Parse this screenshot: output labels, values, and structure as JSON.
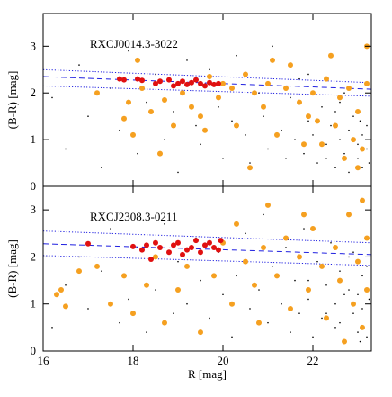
{
  "chart_data": [
    {
      "type": "scatter",
      "annotation": "RXCJ0014.3-3022",
      "ylabel": "(B-R) [mag]",
      "xlim": [
        16,
        23.3
      ],
      "ylim": [
        0,
        3.7
      ],
      "yticks": [
        0,
        1,
        2,
        3
      ],
      "series": [
        {
          "type": "scatter",
          "color": "#000000",
          "marker_size": 0.8,
          "x": [
            16.2,
            16.5,
            16.8,
            17.0,
            17.3,
            17.5,
            17.7,
            17.9,
            18.1,
            18.3,
            18.5,
            18.7,
            18.9,
            19.0,
            19.2,
            19.4,
            19.5,
            19.7,
            19.9,
            20.0,
            20.2,
            20.3,
            20.5,
            20.6,
            20.8,
            20.9,
            21.0,
            21.1,
            21.3,
            21.4,
            21.5,
            21.6,
            21.7,
            21.8,
            21.9,
            22.0,
            22.1,
            22.2,
            22.3,
            22.4,
            22.5,
            22.5,
            22.6,
            22.7,
            22.8,
            22.8,
            22.9,
            23.0,
            23.0,
            23.1,
            23.1,
            23.2,
            23.2,
            23.25,
            22.6,
            22.9,
            23.05,
            21.9,
            22.3,
            22.7
          ],
          "values": [
            1.9,
            0.8,
            2.6,
            1.5,
            0.4,
            2.1,
            1.2,
            2.9,
            0.7,
            1.8,
            2.4,
            1.0,
            1.6,
            0.3,
            2.7,
            1.3,
            0.9,
            2.5,
            1.7,
            0.6,
            1.4,
            2.8,
            1.1,
            0.5,
            2.0,
            1.5,
            0.8,
            3.0,
            1.2,
            0.6,
            1.9,
            1.0,
            2.3,
            0.7,
            1.4,
            1.1,
            0.5,
            1.7,
            0.9,
            1.3,
            0.4,
            1.6,
            1.0,
            0.7,
            1.2,
            0.3,
            1.5,
            0.9,
            0.6,
            1.1,
            0.4,
            1.3,
            0.8,
            0.5,
            1.8,
            1.0,
            1.4,
            2.4,
            0.6,
            2.0
          ]
        },
        {
          "type": "line",
          "color": "#2020e0",
          "style": "dashed",
          "x": [
            16,
            23.3
          ],
          "values": [
            2.35,
            2.08
          ]
        },
        {
          "type": "line",
          "color": "#2020e0",
          "style": "dotted",
          "x": [
            16,
            23.3
          ],
          "values": [
            2.5,
            2.22
          ]
        },
        {
          "type": "line",
          "color": "#2020e0",
          "style": "dotted",
          "x": [
            16,
            23.3
          ],
          "values": [
            2.15,
            1.93
          ]
        },
        {
          "type": "scatter",
          "color": "#f5a020",
          "marker_size": 3,
          "x": [
            17.2,
            17.8,
            17.9,
            18.0,
            18.2,
            18.4,
            18.7,
            18.9,
            19.1,
            19.3,
            19.5,
            19.7,
            19.9,
            20.0,
            20.2,
            20.3,
            20.5,
            20.7,
            20.9,
            21.0,
            21.2,
            21.4,
            21.5,
            21.7,
            21.9,
            22.0,
            22.2,
            22.3,
            22.5,
            22.6,
            22.7,
            22.8,
            22.9,
            23.0,
            23.1,
            23.2,
            23.2,
            23.0,
            22.4,
            21.1,
            18.6,
            18.1,
            20.6,
            21.8,
            22.1,
            19.6
          ],
          "values": [
            2.0,
            1.45,
            1.8,
            1.1,
            2.1,
            1.6,
            1.85,
            1.3,
            2.0,
            1.7,
            1.5,
            2.35,
            1.9,
            2.2,
            2.1,
            1.3,
            2.4,
            2.0,
            1.7,
            2.2,
            1.1,
            2.1,
            2.6,
            1.8,
            1.5,
            2.0,
            0.9,
            2.3,
            1.3,
            1.9,
            0.6,
            2.1,
            1.0,
            1.6,
            0.8,
            2.2,
            3.0,
            0.4,
            2.8,
            2.7,
            0.7,
            2.7,
            0.4,
            0.9,
            1.4,
            1.2
          ]
        },
        {
          "type": "scatter",
          "color": "#e01010",
          "marker_size": 3,
          "x": [
            17.7,
            17.8,
            18.1,
            18.2,
            18.5,
            18.6,
            18.8,
            19.0,
            19.1,
            19.3,
            19.5,
            19.6,
            19.7,
            19.8,
            19.9,
            18.9,
            19.4,
            19.2
          ],
          "values": [
            2.3,
            2.28,
            2.3,
            2.27,
            2.2,
            2.25,
            2.28,
            2.2,
            2.25,
            2.22,
            2.2,
            2.15,
            2.22,
            2.18,
            2.2,
            2.15,
            2.28,
            2.18
          ]
        }
      ]
    },
    {
      "type": "scatter",
      "annotation": "RXCJ2308.3-0211",
      "ylabel": "(B-R) [mag]",
      "xlabel": "R [mag]",
      "xlim": [
        16,
        23.3
      ],
      "ylim": [
        0,
        3.5
      ],
      "xticks": [
        16,
        18,
        20,
        22
      ],
      "yticks": [
        0,
        1,
        2,
        3
      ],
      "series": [
        {
          "type": "scatter",
          "color": "#000000",
          "marker_size": 0.8,
          "x": [
            16.2,
            16.5,
            16.8,
            17.0,
            17.3,
            17.5,
            17.7,
            17.9,
            18.1,
            18.3,
            18.5,
            18.7,
            18.9,
            19.0,
            19.2,
            19.4,
            19.5,
            19.7,
            19.9,
            20.0,
            20.2,
            20.3,
            20.5,
            20.6,
            20.8,
            20.9,
            21.0,
            21.1,
            21.3,
            21.4,
            21.5,
            21.6,
            21.7,
            21.8,
            21.9,
            22.0,
            22.1,
            22.2,
            22.3,
            22.4,
            22.5,
            22.5,
            22.6,
            22.7,
            22.8,
            22.8,
            22.9,
            23.0,
            23.0,
            23.1,
            23.1,
            23.2,
            23.2,
            23.25,
            22.6,
            22.9,
            23.05,
            21.9,
            22.3,
            22.7
          ],
          "values": [
            0.5,
            1.4,
            2.0,
            0.9,
            1.7,
            2.6,
            0.6,
            1.1,
            2.2,
            0.4,
            1.3,
            2.7,
            0.8,
            1.9,
            1.0,
            2.4,
            1.5,
            0.7,
            2.1,
            1.2,
            0.3,
            1.6,
            2.5,
            0.9,
            1.3,
            2.9,
            0.6,
            1.8,
            1.0,
            2.2,
            0.4,
            1.5,
            0.8,
            2.6,
            1.1,
            0.3,
            1.9,
            0.7,
            1.4,
            2.3,
            1.0,
            0.5,
            1.7,
            0.2,
            1.3,
            2.0,
            0.8,
            1.2,
            0.4,
            1.6,
            0.9,
            0.3,
            1.8,
            1.1,
            0.6,
            2.1,
            0.2,
            1.5,
            0.8,
            1.2
          ]
        },
        {
          "type": "line",
          "color": "#2020e0",
          "style": "dashed",
          "x": [
            16,
            23.3
          ],
          "values": [
            2.28,
            2.05
          ]
        },
        {
          "type": "line",
          "color": "#2020e0",
          "style": "dotted",
          "x": [
            16,
            23.3
          ],
          "values": [
            2.55,
            2.3
          ]
        },
        {
          "type": "line",
          "color": "#2020e0",
          "style": "dotted",
          "x": [
            16,
            23.3
          ],
          "values": [
            2.03,
            1.82
          ]
        },
        {
          "type": "scatter",
          "color": "#f5a020",
          "marker_size": 3,
          "x": [
            16.3,
            16.4,
            16.5,
            16.8,
            17.2,
            17.5,
            17.8,
            18.0,
            18.3,
            18.5,
            18.7,
            19.0,
            19.2,
            19.5,
            19.8,
            20.0,
            20.2,
            20.3,
            20.5,
            20.7,
            20.9,
            21.0,
            21.2,
            21.4,
            21.5,
            21.7,
            21.9,
            22.0,
            22.2,
            22.3,
            22.5,
            22.6,
            22.8,
            22.9,
            23.0,
            23.1,
            23.2,
            23.2,
            22.7,
            21.8,
            20.8,
            23.1
          ],
          "values": [
            1.2,
            1.3,
            0.95,
            1.7,
            1.8,
            1.0,
            1.6,
            0.8,
            1.4,
            2.0,
            0.6,
            1.3,
            1.8,
            0.4,
            1.6,
            2.3,
            1.0,
            2.7,
            1.9,
            1.4,
            2.2,
            3.1,
            1.6,
            2.4,
            0.9,
            2.0,
            1.3,
            2.6,
            1.8,
            0.7,
            2.2,
            1.5,
            2.9,
            1.0,
            1.9,
            0.5,
            2.4,
            1.3,
            0.2,
            2.9,
            0.6,
            3.2
          ]
        },
        {
          "type": "scatter",
          "color": "#e01010",
          "marker_size": 3,
          "x": [
            17.0,
            18.0,
            18.2,
            18.3,
            18.5,
            18.6,
            18.8,
            18.9,
            19.0,
            19.2,
            19.3,
            19.4,
            19.5,
            19.6,
            19.7,
            19.8,
            19.9,
            19.95,
            18.4,
            19.1
          ],
          "values": [
            2.28,
            2.22,
            2.15,
            2.25,
            2.3,
            2.2,
            2.1,
            2.25,
            2.3,
            2.15,
            2.2,
            2.35,
            2.1,
            2.25,
            2.3,
            2.2,
            2.15,
            2.35,
            1.95,
            2.05
          ]
        }
      ]
    }
  ]
}
